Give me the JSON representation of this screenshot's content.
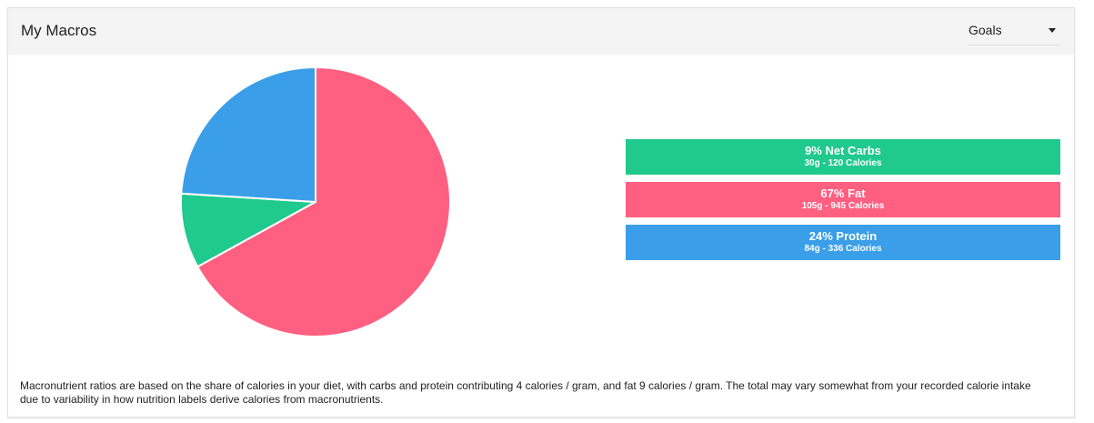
{
  "header": {
    "title": "My Macros",
    "dropdown": "Goals"
  },
  "chart_data": {
    "type": "pie",
    "categories": [
      "Net Carbs",
      "Fat",
      "Protein"
    ],
    "values": [
      9,
      67,
      24
    ],
    "value_labels": [
      "9%",
      "67%",
      "24%"
    ],
    "details": [
      "30g - 120 Calories",
      "105g - 945 Calories",
      "84g - 336 Calories"
    ],
    "colors": [
      "#20c98e",
      "#ff5f80",
      "#3a9fe8"
    ]
  },
  "footnote": "Macronutrient ratios are based on the share of calories in your diet, with carbs and protein contributing 4 calories / gram, and fat 9 calories / gram. The total may vary somewhat from your recorded calorie intake due to variability in how nutrition labels derive calories from macronutrients."
}
